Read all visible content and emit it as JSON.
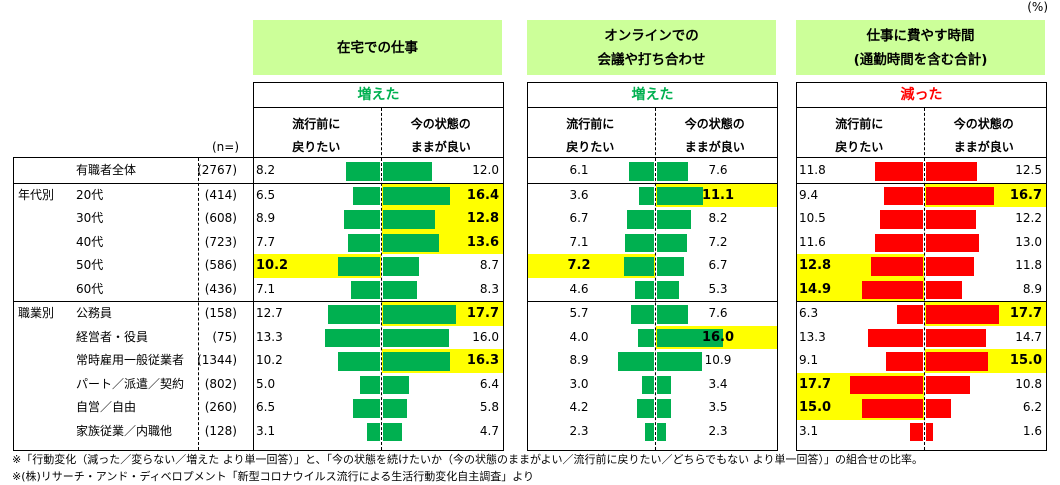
{
  "unit_label": "(%)",
  "n_label": "(n=)",
  "footnotes": [
    "※「行動変化（減った／変らない／増えた より単一回答）」と、「今の状態を続けたいか（今の状態のままがよい／流行前に戻りたい／どちらでもない より単一回答）」の組合せの比率。",
    "※(株)リサーチ・アンド・ディベロプメント「新型コロナウイルス流行による生活行動変化自主調査」より"
  ],
  "chart_data": {
    "type": "bar",
    "orientation": "horizontal-diverging",
    "unit": "%",
    "row_groups": [
      {
        "group": "",
        "rows": [
          0
        ]
      },
      {
        "group": "年代別",
        "rows": [
          1,
          2,
          3,
          4,
          5
        ]
      },
      {
        "group": "職業別",
        "rows": [
          6,
          7,
          8,
          9,
          10,
          11
        ]
      }
    ],
    "categories": [
      {
        "group": "",
        "label": "有職者全体",
        "n": "(2767)"
      },
      {
        "group": "年代別",
        "label": "20代",
        "n": "(414)"
      },
      {
        "group": "",
        "label": "30代",
        "n": "(608)"
      },
      {
        "group": "",
        "label": "40代",
        "n": "(723)"
      },
      {
        "group": "",
        "label": "50代",
        "n": "(586)"
      },
      {
        "group": "",
        "label": "60代",
        "n": "(436)"
      },
      {
        "group": "職業別",
        "label": "公務員",
        "n": "(158)"
      },
      {
        "group": "",
        "label": "経営者・役員",
        "n": "(75)"
      },
      {
        "group": "",
        "label": "常時雇用一般従業者",
        "n": "(1344)"
      },
      {
        "group": "",
        "label": "パート／派遣／契約",
        "n": "(802)"
      },
      {
        "group": "",
        "label": "自営／自由",
        "n": "(260)"
      },
      {
        "group": "",
        "label": "家族従業／内職他",
        "n": "(128)"
      }
    ],
    "panels": [
      {
        "title_lines": [
          "在宅での仕事",
          ""
        ],
        "change_label": "増えた",
        "change_color": "#00b050",
        "bar_color": "#00b050",
        "left_header": [
          "流行前に",
          "戻りたい"
        ],
        "right_header": [
          "今の状態の",
          "ままが良い"
        ],
        "series": [
          {
            "name": "流行前に戻りたい",
            "values": [
              8.2,
              6.5,
              8.9,
              7.7,
              10.2,
              7.1,
              12.7,
              13.3,
              10.2,
              5.0,
              6.5,
              3.1
            ],
            "labels": [
              "8.2",
              "6.5",
              "8.9",
              "7.7",
              "10.2",
              "7.1",
              "12.7",
              "13.3",
              "10.2",
              "5.0",
              "6.5",
              "3.1"
            ],
            "highlight": [
              false,
              false,
              false,
              false,
              true,
              false,
              false,
              false,
              false,
              false,
              false,
              false
            ]
          },
          {
            "name": "今の状態のままが良い",
            "values": [
              12.0,
              16.4,
              12.8,
              13.6,
              8.7,
              8.3,
              17.7,
              16.0,
              16.3,
              6.4,
              5.8,
              4.7
            ],
            "labels": [
              "12.0",
              "16.4",
              "12.8",
              "13.6",
              "8.7",
              "8.3",
              "17.7",
              "16.0",
              "16.3",
              "6.4",
              "5.8",
              "4.7"
            ],
            "highlight": [
              false,
              true,
              true,
              true,
              false,
              false,
              true,
              false,
              true,
              false,
              false,
              false
            ]
          }
        ]
      },
      {
        "title_lines": [
          "オンラインでの",
          "会議や打ち合わせ"
        ],
        "change_label": "増えた",
        "change_color": "#00b050",
        "bar_color": "#00b050",
        "left_header": [
          "流行前に",
          "戻りたい"
        ],
        "right_header": [
          "今の状態の",
          "ままが良い"
        ],
        "series": [
          {
            "name": "流行前に戻りたい",
            "values": [
              6.1,
              3.6,
              6.7,
              7.1,
              7.2,
              4.6,
              5.7,
              4.0,
              8.9,
              3.0,
              4.2,
              2.3
            ],
            "labels": [
              "6.1",
              "3.6",
              "6.7",
              "7.1",
              "7.2",
              "4.6",
              "5.7",
              "4.0",
              "8.9",
              "3.0",
              "4.2",
              "2.3"
            ],
            "highlight": [
              false,
              false,
              false,
              false,
              true,
              false,
              false,
              false,
              false,
              false,
              false,
              false
            ]
          },
          {
            "name": "今の状態のままが良い",
            "values": [
              7.6,
              11.1,
              8.2,
              7.2,
              6.7,
              5.3,
              7.6,
              16.0,
              10.9,
              3.4,
              3.5,
              2.3
            ],
            "labels": [
              "7.6",
              "11.1",
              "8.2",
              "7.2",
              "6.7",
              "5.3",
              "7.6",
              "16.0",
              "10.9",
              "3.4",
              "3.5",
              "2.3"
            ],
            "highlight": [
              false,
              true,
              false,
              false,
              false,
              false,
              false,
              true,
              false,
              false,
              false,
              false
            ]
          }
        ]
      },
      {
        "title_lines": [
          "仕事に費やす時間",
          "(通勤時間を含む合計)"
        ],
        "change_label": "減った",
        "change_color": "#ff0000",
        "bar_color": "#ff0000",
        "left_header": [
          "流行前に",
          "戻りたい"
        ],
        "right_header": [
          "今の状態の",
          "ままが良い"
        ],
        "series": [
          {
            "name": "流行前に戻りたい",
            "values": [
              11.8,
              9.4,
              10.5,
              11.6,
              12.8,
              14.9,
              6.3,
              13.3,
              9.1,
              17.7,
              15.0,
              3.1
            ],
            "labels": [
              "11.8",
              "9.4",
              "10.5",
              "11.6",
              "12.8",
              "14.9",
              "6.3",
              "13.3",
              "9.1",
              "17.7",
              "15.0",
              "3.1"
            ],
            "highlight": [
              false,
              false,
              false,
              false,
              true,
              true,
              false,
              false,
              false,
              true,
              true,
              false
            ]
          },
          {
            "name": "今の状態のままが良い",
            "values": [
              12.5,
              16.7,
              12.2,
              13.0,
              11.8,
              8.9,
              17.7,
              14.7,
              15.0,
              10.8,
              6.2,
              1.6
            ],
            "labels": [
              "12.5",
              "16.7",
              "12.2",
              "13.0",
              "11.8",
              "8.9",
              "17.7",
              "14.7",
              "15.0",
              "10.8",
              "6.2",
              "1.6"
            ],
            "highlight": [
              false,
              true,
              false,
              false,
              false,
              false,
              true,
              false,
              true,
              false,
              false,
              false
            ]
          }
        ]
      }
    ],
    "highlight_color": "#ffff00",
    "title_bg_color": "#ccff99"
  }
}
